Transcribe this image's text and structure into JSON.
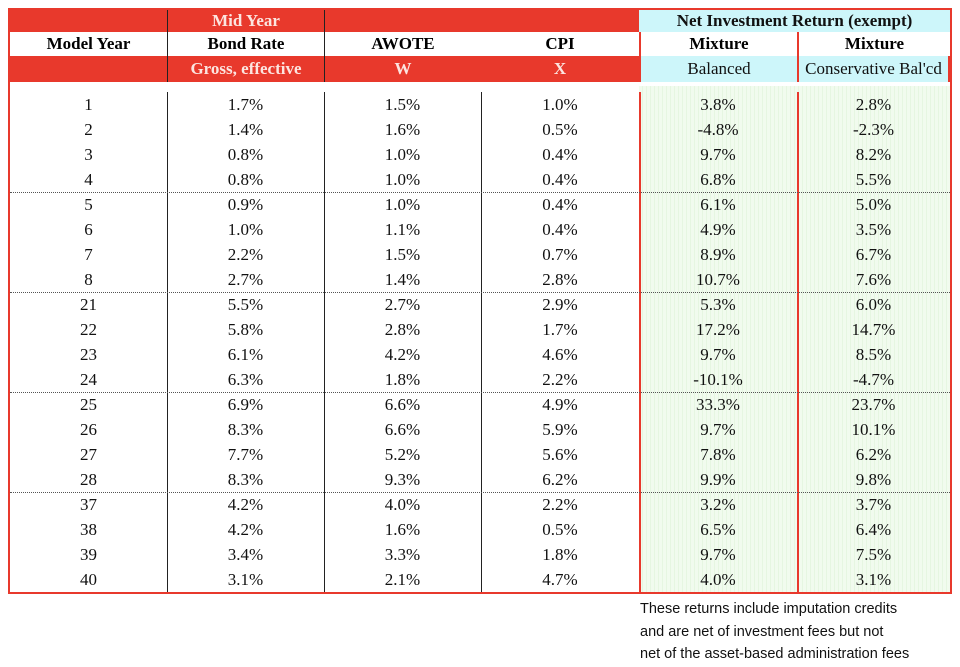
{
  "header": {
    "row1": {
      "bond": "Mid Year",
      "nir": "Net Investment Return (exempt)"
    },
    "row2": [
      "Model Year",
      "Bond Rate",
      "AWOTE",
      "CPI",
      "Mixture",
      "Mixture"
    ],
    "row3": [
      "",
      "Gross, effective",
      "W",
      "X",
      "Balanced",
      "Conservative Bal'cd"
    ]
  },
  "rows": [
    [
      "1",
      "1.7%",
      "1.5%",
      "1.0%",
      "3.8%",
      "2.8%"
    ],
    [
      "2",
      "1.4%",
      "1.6%",
      "0.5%",
      "-4.8%",
      "-2.3%"
    ],
    [
      "3",
      "0.8%",
      "1.0%",
      "0.4%",
      "9.7%",
      "8.2%"
    ],
    [
      "4",
      "0.8%",
      "1.0%",
      "0.4%",
      "6.8%",
      "5.5%"
    ],
    [
      "5",
      "0.9%",
      "1.0%",
      "0.4%",
      "6.1%",
      "5.0%"
    ],
    [
      "6",
      "1.0%",
      "1.1%",
      "0.4%",
      "4.9%",
      "3.5%"
    ],
    [
      "7",
      "2.2%",
      "1.5%",
      "0.7%",
      "8.9%",
      "6.7%"
    ],
    [
      "8",
      "2.7%",
      "1.4%",
      "2.8%",
      "10.7%",
      "7.6%"
    ],
    [
      "21",
      "5.5%",
      "2.7%",
      "2.9%",
      "5.3%",
      "6.0%"
    ],
    [
      "22",
      "5.8%",
      "2.8%",
      "1.7%",
      "17.2%",
      "14.7%"
    ],
    [
      "23",
      "6.1%",
      "4.2%",
      "4.6%",
      "9.7%",
      "8.5%"
    ],
    [
      "24",
      "6.3%",
      "1.8%",
      "2.2%",
      "-10.1%",
      "-4.7%"
    ],
    [
      "25",
      "6.9%",
      "6.6%",
      "4.9%",
      "33.3%",
      "23.7%"
    ],
    [
      "26",
      "8.3%",
      "6.6%",
      "5.9%",
      "9.7%",
      "10.1%"
    ],
    [
      "27",
      "7.7%",
      "5.2%",
      "5.6%",
      "7.8%",
      "6.2%"
    ],
    [
      "28",
      "8.3%",
      "9.3%",
      "6.2%",
      "9.9%",
      "9.8%"
    ],
    [
      "37",
      "4.2%",
      "4.0%",
      "2.2%",
      "3.2%",
      "3.7%"
    ],
    [
      "38",
      "4.2%",
      "1.6%",
      "0.5%",
      "6.5%",
      "6.4%"
    ],
    [
      "39",
      "3.4%",
      "3.3%",
      "1.8%",
      "9.7%",
      "7.5%"
    ],
    [
      "40",
      "3.1%",
      "2.1%",
      "4.7%",
      "4.0%",
      "3.1%"
    ]
  ],
  "note": [
    "These returns include imputation credits",
    "and are net of investment fees but not",
    "net of the asset-based administration fees"
  ],
  "colors": {
    "red": "#e8392c",
    "cyan": "#cdf6fa",
    "green": "#f1fbee"
  }
}
